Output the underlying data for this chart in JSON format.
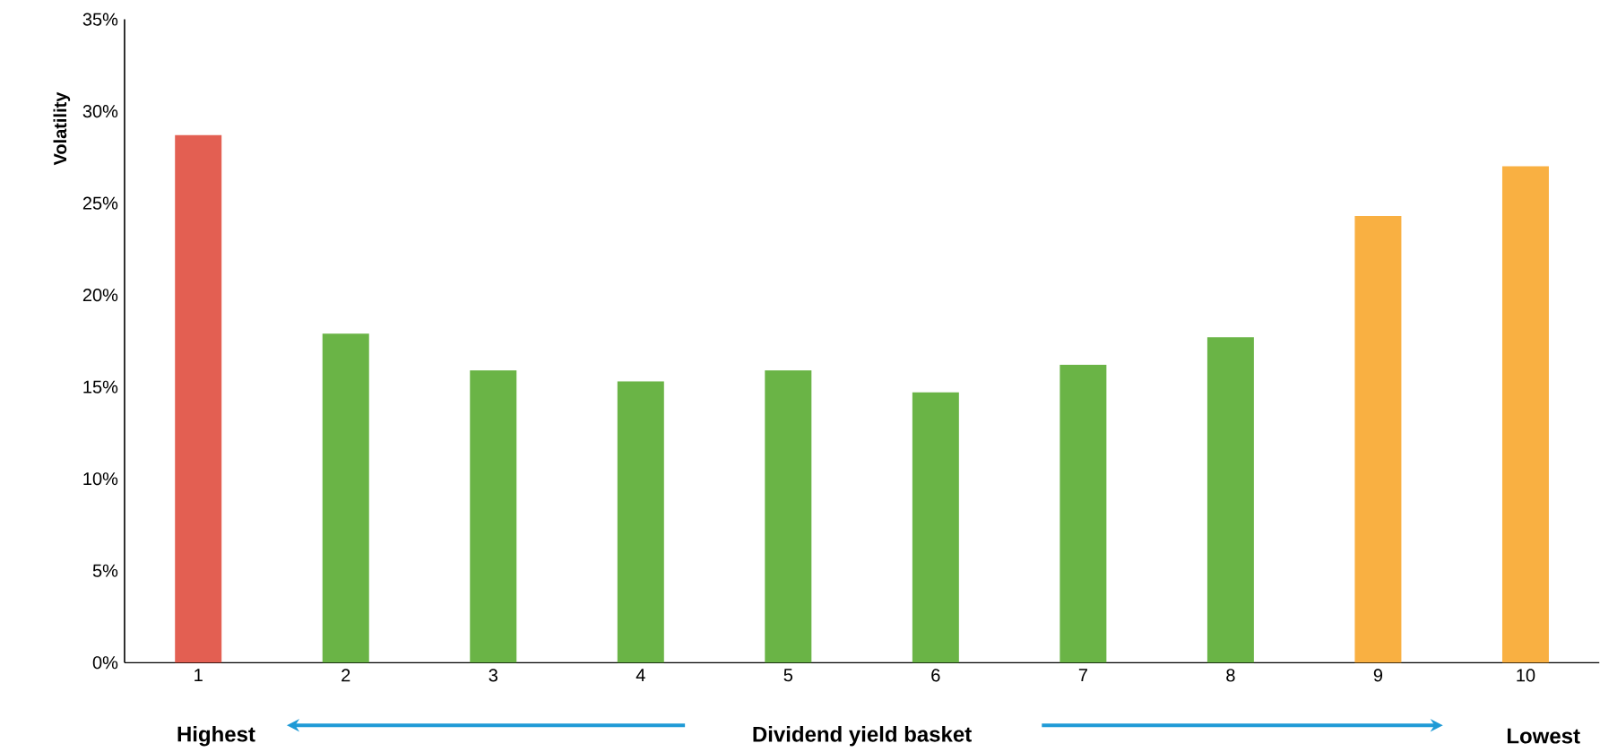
{
  "chart_data": {
    "type": "bar",
    "xlabel": "Dividend yield basket",
    "ylabel": "Volatility",
    "categories": [
      "1",
      "2",
      "3",
      "4",
      "5",
      "6",
      "7",
      "8",
      "9",
      "10"
    ],
    "values": [
      28.7,
      17.9,
      15.9,
      15.3,
      15.9,
      14.7,
      16.2,
      17.7,
      24.3,
      27.0
    ],
    "colors": [
      "#e35f52",
      "#6ab446",
      "#6ab446",
      "#6ab446",
      "#6ab446",
      "#6ab446",
      "#6ab446",
      "#6ab446",
      "#f9b042",
      "#f9b042"
    ],
    "ylim": [
      0,
      35
    ],
    "yticks": [
      {
        "value": 0,
        "label": "0%"
      },
      {
        "value": 5,
        "label": "5%"
      },
      {
        "value": 10,
        "label": "10%"
      },
      {
        "value": 15,
        "label": "15%"
      },
      {
        "value": 20,
        "label": "20%"
      },
      {
        "value": 25,
        "label": "25%"
      },
      {
        "value": 30,
        "label": "30%"
      },
      {
        "value": 35,
        "label": "35%"
      }
    ],
    "annotations": [
      "Highest",
      "Lowest"
    ],
    "grid": false
  }
}
